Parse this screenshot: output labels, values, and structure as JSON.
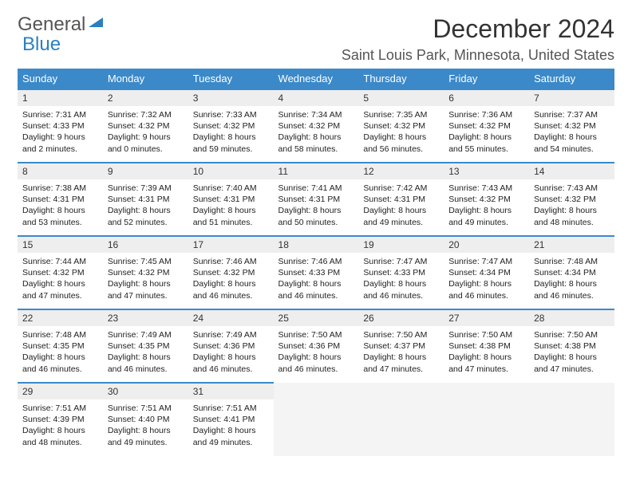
{
  "brand": {
    "word1": "General",
    "word2": "Blue"
  },
  "title": "December 2024",
  "location": "Saint Louis Park, Minnesota, United States",
  "colors": {
    "header_bg": "#3b89c9",
    "header_text": "#ffffff",
    "rule": "#3b89c9",
    "datebar_bg": "#eeeeee",
    "empty_bg": "#f4f4f4",
    "text": "#333333",
    "logo_gray": "#555555",
    "logo_blue": "#2a7fbf",
    "page_bg": "#ffffff"
  },
  "fonts": {
    "family": "Arial, Helvetica, sans-serif",
    "title_size": 32,
    "location_size": 18,
    "dow_size": 13,
    "date_size": 12,
    "body_size": 10.5
  },
  "daynames": [
    "Sunday",
    "Monday",
    "Tuesday",
    "Wednesday",
    "Thursday",
    "Friday",
    "Saturday"
  ],
  "weeks": [
    [
      {
        "date": "1",
        "sunrise": "7:31 AM",
        "sunset": "4:33 PM",
        "dlh": "9",
        "dlm": "2"
      },
      {
        "date": "2",
        "sunrise": "7:32 AM",
        "sunset": "4:32 PM",
        "dlh": "9",
        "dlm": "0"
      },
      {
        "date": "3",
        "sunrise": "7:33 AM",
        "sunset": "4:32 PM",
        "dlh": "8",
        "dlm": "59"
      },
      {
        "date": "4",
        "sunrise": "7:34 AM",
        "sunset": "4:32 PM",
        "dlh": "8",
        "dlm": "58"
      },
      {
        "date": "5",
        "sunrise": "7:35 AM",
        "sunset": "4:32 PM",
        "dlh": "8",
        "dlm": "56"
      },
      {
        "date": "6",
        "sunrise": "7:36 AM",
        "sunset": "4:32 PM",
        "dlh": "8",
        "dlm": "55"
      },
      {
        "date": "7",
        "sunrise": "7:37 AM",
        "sunset": "4:32 PM",
        "dlh": "8",
        "dlm": "54"
      }
    ],
    [
      {
        "date": "8",
        "sunrise": "7:38 AM",
        "sunset": "4:31 PM",
        "dlh": "8",
        "dlm": "53"
      },
      {
        "date": "9",
        "sunrise": "7:39 AM",
        "sunset": "4:31 PM",
        "dlh": "8",
        "dlm": "52"
      },
      {
        "date": "10",
        "sunrise": "7:40 AM",
        "sunset": "4:31 PM",
        "dlh": "8",
        "dlm": "51"
      },
      {
        "date": "11",
        "sunrise": "7:41 AM",
        "sunset": "4:31 PM",
        "dlh": "8",
        "dlm": "50"
      },
      {
        "date": "12",
        "sunrise": "7:42 AM",
        "sunset": "4:31 PM",
        "dlh": "8",
        "dlm": "49"
      },
      {
        "date": "13",
        "sunrise": "7:43 AM",
        "sunset": "4:32 PM",
        "dlh": "8",
        "dlm": "49"
      },
      {
        "date": "14",
        "sunrise": "7:43 AM",
        "sunset": "4:32 PM",
        "dlh": "8",
        "dlm": "48"
      }
    ],
    [
      {
        "date": "15",
        "sunrise": "7:44 AM",
        "sunset": "4:32 PM",
        "dlh": "8",
        "dlm": "47"
      },
      {
        "date": "16",
        "sunrise": "7:45 AM",
        "sunset": "4:32 PM",
        "dlh": "8",
        "dlm": "47"
      },
      {
        "date": "17",
        "sunrise": "7:46 AM",
        "sunset": "4:32 PM",
        "dlh": "8",
        "dlm": "46"
      },
      {
        "date": "18",
        "sunrise": "7:46 AM",
        "sunset": "4:33 PM",
        "dlh": "8",
        "dlm": "46"
      },
      {
        "date": "19",
        "sunrise": "7:47 AM",
        "sunset": "4:33 PM",
        "dlh": "8",
        "dlm": "46"
      },
      {
        "date": "20",
        "sunrise": "7:47 AM",
        "sunset": "4:34 PM",
        "dlh": "8",
        "dlm": "46"
      },
      {
        "date": "21",
        "sunrise": "7:48 AM",
        "sunset": "4:34 PM",
        "dlh": "8",
        "dlm": "46"
      }
    ],
    [
      {
        "date": "22",
        "sunrise": "7:48 AM",
        "sunset": "4:35 PM",
        "dlh": "8",
        "dlm": "46"
      },
      {
        "date": "23",
        "sunrise": "7:49 AM",
        "sunset": "4:35 PM",
        "dlh": "8",
        "dlm": "46"
      },
      {
        "date": "24",
        "sunrise": "7:49 AM",
        "sunset": "4:36 PM",
        "dlh": "8",
        "dlm": "46"
      },
      {
        "date": "25",
        "sunrise": "7:50 AM",
        "sunset": "4:36 PM",
        "dlh": "8",
        "dlm": "46"
      },
      {
        "date": "26",
        "sunrise": "7:50 AM",
        "sunset": "4:37 PM",
        "dlh": "8",
        "dlm": "47"
      },
      {
        "date": "27",
        "sunrise": "7:50 AM",
        "sunset": "4:38 PM",
        "dlh": "8",
        "dlm": "47"
      },
      {
        "date": "28",
        "sunrise": "7:50 AM",
        "sunset": "4:38 PM",
        "dlh": "8",
        "dlm": "47"
      }
    ],
    [
      {
        "date": "29",
        "sunrise": "7:51 AM",
        "sunset": "4:39 PM",
        "dlh": "8",
        "dlm": "48"
      },
      {
        "date": "30",
        "sunrise": "7:51 AM",
        "sunset": "4:40 PM",
        "dlh": "8",
        "dlm": "49"
      },
      {
        "date": "31",
        "sunrise": "7:51 AM",
        "sunset": "4:41 PM",
        "dlh": "8",
        "dlm": "49"
      },
      null,
      null,
      null,
      null
    ]
  ],
  "labels": {
    "sunrise_prefix": "Sunrise: ",
    "sunset_prefix": "Sunset: ",
    "daylight_prefix": "Daylight: ",
    "hours_word": " hours and ",
    "minutes_word": " minutes."
  }
}
